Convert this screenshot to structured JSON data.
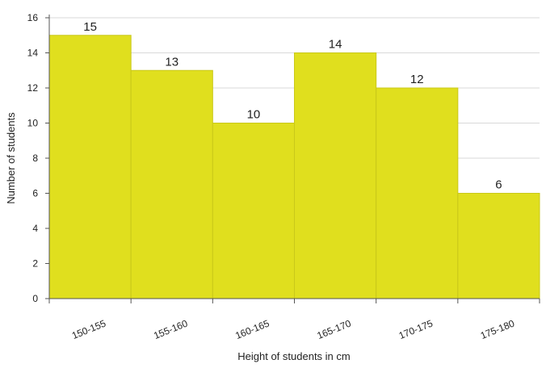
{
  "chart_data": {
    "type": "bar",
    "title": "",
    "xlabel": "Height of students in cm",
    "ylabel": "Number of students",
    "categories": [
      "150-155",
      "155-160",
      "160-165",
      "165-170",
      "170-175",
      "175-180"
    ],
    "values": [
      15,
      13,
      10,
      14,
      12,
      6
    ],
    "data_labels": [
      "15",
      "13",
      "10",
      "14",
      "12",
      "6"
    ],
    "y_ticks": [
      "0",
      "2",
      "4",
      "6",
      "8",
      "10",
      "12",
      "14",
      "16"
    ],
    "ylim": [
      0,
      16
    ],
    "grid": true,
    "legend": "none",
    "bar_color": "#e0df1e",
    "bar_edge_color": "#c9c81a",
    "grid_color": "#d9d9d9",
    "axis_color": "#555555"
  }
}
